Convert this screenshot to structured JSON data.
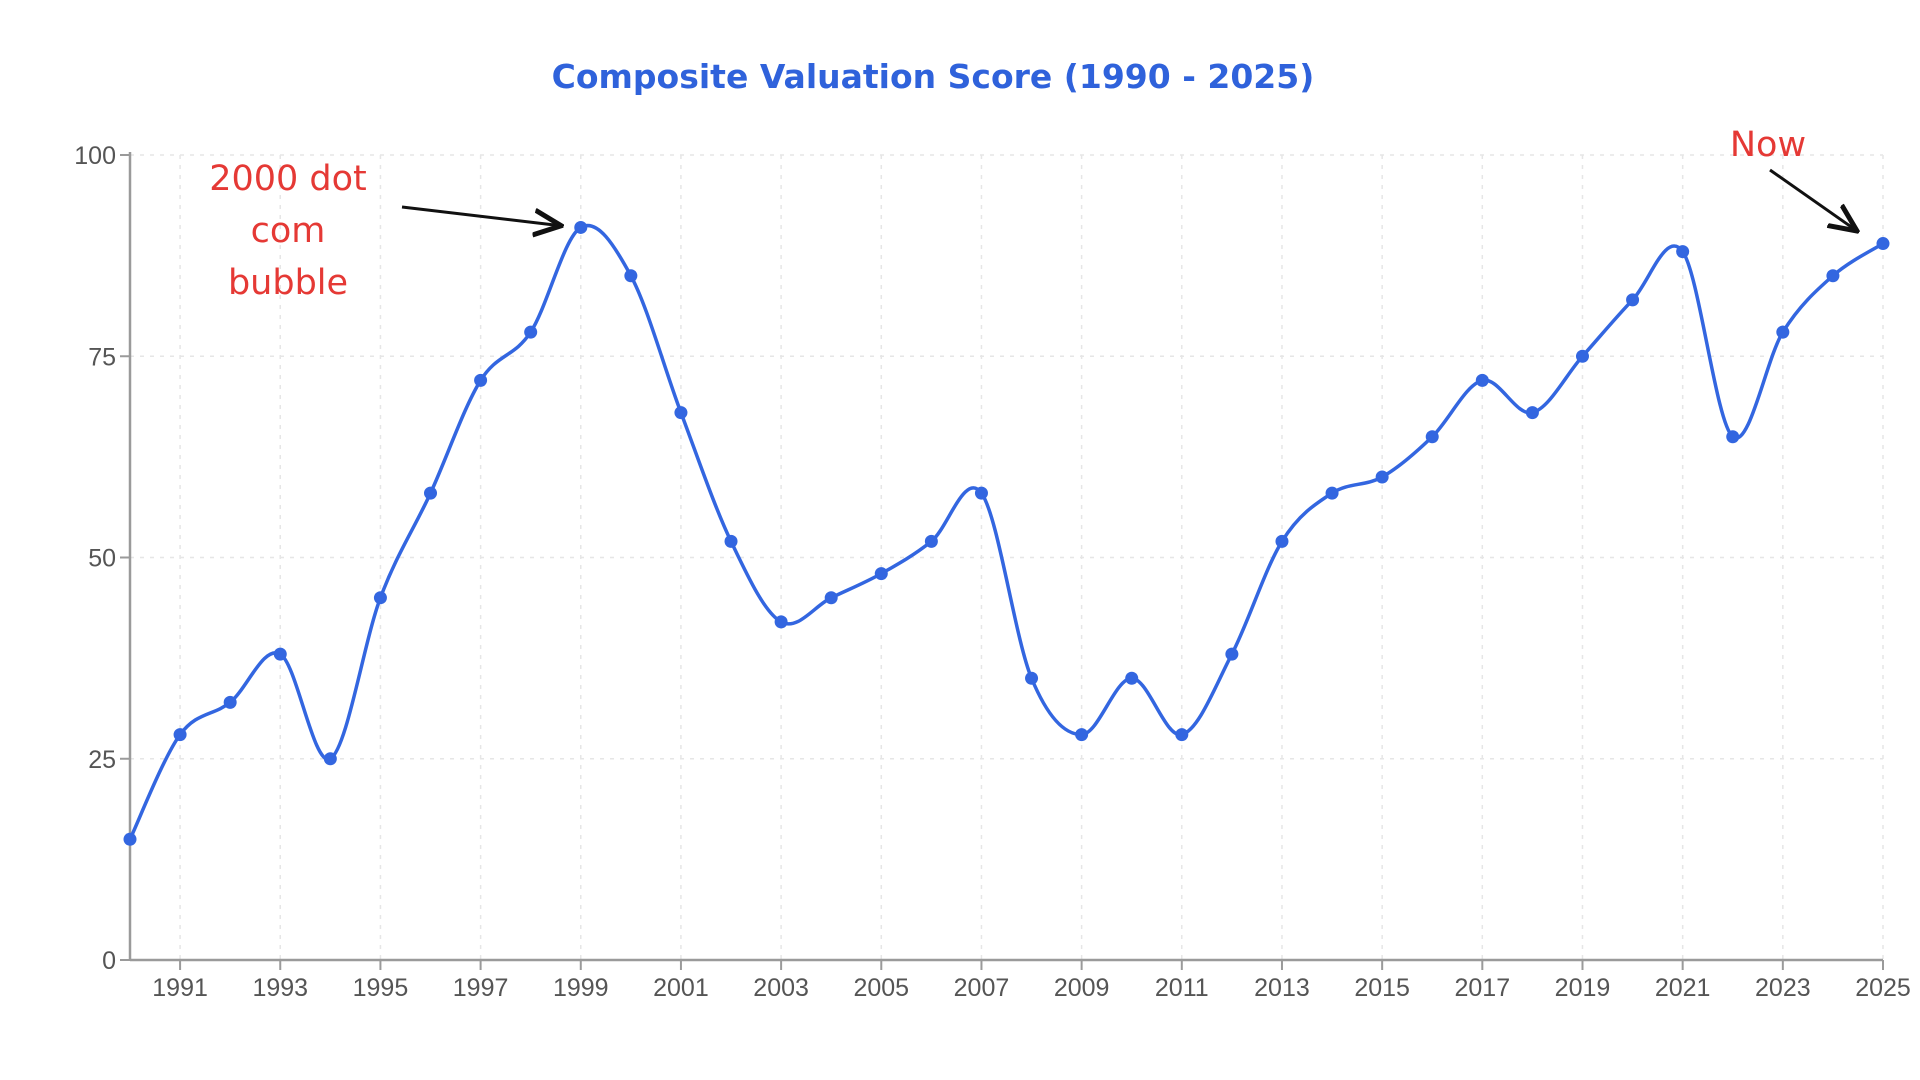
{
  "chart_data": {
    "type": "line",
    "title": "Composite Valuation Score (1990 - 2025)",
    "xlabel": "",
    "ylabel": "",
    "x": [
      1990,
      1991,
      1992,
      1993,
      1994,
      1995,
      1996,
      1997,
      1998,
      1999,
      2000,
      2001,
      2002,
      2003,
      2004,
      2005,
      2006,
      2007,
      2008,
      2009,
      2010,
      2011,
      2012,
      2013,
      2014,
      2015,
      2016,
      2017,
      2018,
      2019,
      2020,
      2021,
      2022,
      2023,
      2024,
      2025
    ],
    "series": [
      {
        "values": [
          15,
          28,
          32,
          38,
          25,
          45,
          58,
          72,
          78,
          91,
          85,
          68,
          52,
          42,
          45,
          48,
          52,
          58,
          35,
          28,
          35,
          28,
          38,
          52,
          58,
          60,
          65,
          72,
          68,
          75,
          82,
          88,
          65,
          78,
          85,
          89
        ]
      }
    ],
    "xticks": [
      "1991",
      "1993",
      "1995",
      "1997",
      "1999",
      "2001",
      "2003",
      "2005",
      "2007",
      "2009",
      "2011",
      "2013",
      "2015",
      "2017",
      "2019",
      "2021",
      "2023",
      "2025"
    ],
    "yticks": [
      "0",
      "25",
      "50",
      "75",
      "100"
    ],
    "xlim": [
      1990,
      2025
    ],
    "ylim": [
      0,
      100
    ],
    "grid": true,
    "legend": "none",
    "annotations": [
      {
        "lines": [
          "2000 dot",
          "com",
          "bubble"
        ],
        "points_to_year": 1999
      },
      {
        "lines": [
          "Now"
        ],
        "points_to_year": 2025
      }
    ],
    "colors": {
      "line": "#3366e0",
      "title": "#2f62db",
      "annotation": "#e53935",
      "arrow": "#111111",
      "axis": "#9a9a9a",
      "grid": "#e6e6e6",
      "tick_text": "#555555"
    }
  }
}
